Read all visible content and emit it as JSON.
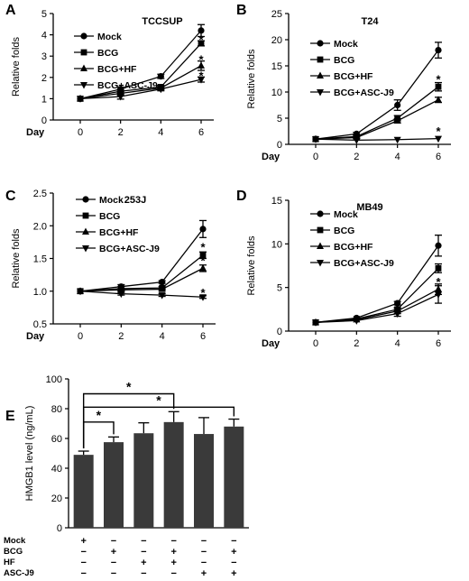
{
  "chart_data": [
    {
      "panel": "A",
      "type": "line",
      "title": "TCCSUP",
      "xlabel": "Day",
      "ylabel": "Relative folds",
      "x": [
        0,
        2,
        4,
        6
      ],
      "ylim": [
        0,
        5
      ],
      "yticks": [
        "0",
        "1",
        "2",
        "3",
        "4",
        "5"
      ],
      "xticks": [
        "0",
        "2",
        "4",
        "6"
      ],
      "series": [
        {
          "name": "Mock",
          "marker": "circle",
          "values": [
            1,
            1.45,
            2.05,
            4.2
          ],
          "errors": [
            0.03,
            0.1,
            0.1,
            0.28
          ]
        },
        {
          "name": "BCG",
          "marker": "square",
          "values": [
            1,
            1.35,
            1.55,
            3.6
          ],
          "errors": [
            0.03,
            0.08,
            0.08,
            0.12
          ]
        },
        {
          "name": "BCG+HF",
          "marker": "triangle-up",
          "values": [
            1,
            1.25,
            1.5,
            2.55
          ],
          "errors": [
            0.03,
            0.08,
            0.08,
            0.22
          ]
        },
        {
          "name": "BCG+ASC-J9",
          "marker": "triangle-down",
          "values": [
            1,
            1.1,
            1.45,
            1.9
          ],
          "errors": [
            0.03,
            0.12,
            0.08,
            0.12
          ]
        }
      ],
      "annotations": [
        {
          "text": "*",
          "x": 6,
          "y": 3.8
        },
        {
          "text": "*",
          "x": 6,
          "y": 2.85
        },
        {
          "text": "*",
          "x": 6,
          "y": 2.1
        }
      ],
      "legend": "top-left"
    },
    {
      "panel": "B",
      "type": "line",
      "title": "T24",
      "xlabel": "Day",
      "ylabel": "Relative folds",
      "x": [
        0,
        2,
        4,
        6
      ],
      "ylim": [
        0,
        25
      ],
      "yticks": [
        "0",
        "5",
        "10",
        "15",
        "20",
        "25"
      ],
      "xticks": [
        "0",
        "2",
        "4",
        "6"
      ],
      "series": [
        {
          "name": "Mock",
          "marker": "circle",
          "values": [
            1,
            2,
            7.5,
            18
          ],
          "errors": [
            0.1,
            0.3,
            1.0,
            1.5
          ]
        },
        {
          "name": "BCG",
          "marker": "square",
          "values": [
            1,
            1.5,
            5,
            11
          ],
          "errors": [
            0.1,
            0.3,
            0.5,
            0.8
          ]
        },
        {
          "name": "BCG+HF",
          "marker": "triangle-up",
          "values": [
            1,
            1.3,
            4.5,
            8.5
          ],
          "errors": [
            0.1,
            0.2,
            0.4,
            0.5
          ]
        },
        {
          "name": "BCG+ASC-J9",
          "marker": "triangle-down",
          "values": [
            1,
            0.8,
            0.9,
            1.1
          ],
          "errors": [
            0.1,
            0.1,
            0.1,
            0.1
          ]
        }
      ],
      "annotations": [
        {
          "text": "*",
          "x": 6,
          "y": 12.5
        },
        {
          "text": "*",
          "x": 6,
          "y": 2.6
        }
      ],
      "legend": "top-left"
    },
    {
      "panel": "C",
      "type": "line",
      "title": "253J",
      "xlabel": "Day",
      "ylabel": "Relative folds",
      "x": [
        0,
        2,
        4,
        6
      ],
      "ylim": [
        0.5,
        2.5
      ],
      "yticks": [
        "0.5",
        "1.0",
        "1.5",
        "2.0",
        "2.5"
      ],
      "xticks": [
        "0",
        "2",
        "4",
        "6"
      ],
      "series": [
        {
          "name": "Mock",
          "marker": "circle",
          "values": [
            1,
            1.07,
            1.14,
            1.95
          ],
          "errors": [
            0.01,
            0.03,
            0.02,
            0.13
          ]
        },
        {
          "name": "BCG",
          "marker": "square",
          "values": [
            1,
            1.04,
            1.05,
            1.55
          ],
          "errors": [
            0.01,
            0.03,
            0.02,
            0.05
          ]
        },
        {
          "name": "BCG+HF",
          "marker": "triangle-up",
          "values": [
            1,
            1.02,
            1.03,
            1.35
          ],
          "errors": [
            0.01,
            0.02,
            0.02,
            0.05
          ]
        },
        {
          "name": "BCG+ASC-J9",
          "marker": "triangle-down",
          "values": [
            1,
            0.96,
            0.94,
            0.91
          ],
          "errors": [
            0.01,
            0.02,
            0.02,
            0.02
          ]
        }
      ],
      "annotations": [
        {
          "text": "*",
          "x": 6,
          "y": 1.68
        },
        {
          "text": "*",
          "x": 6,
          "y": 1.47
        },
        {
          "text": "*",
          "x": 6,
          "y": 0.98
        }
      ],
      "legend": "top-left"
    },
    {
      "panel": "D",
      "type": "line",
      "title": "MB49",
      "xlabel": "Day",
      "ylabel": "Relative folds",
      "x": [
        0,
        2,
        4,
        6
      ],
      "ylim": [
        0,
        15
      ],
      "yticks": [
        "0",
        "5",
        "10",
        "15"
      ],
      "xticks": [
        "0",
        "2",
        "4",
        "6"
      ],
      "series": [
        {
          "name": "Mock",
          "marker": "circle",
          "values": [
            1,
            1.5,
            3.2,
            9.8
          ],
          "errors": [
            0.05,
            0.1,
            0.2,
            1.2
          ]
        },
        {
          "name": "BCG",
          "marker": "square",
          "values": [
            1,
            1.4,
            2.5,
            7.2
          ],
          "errors": [
            0.05,
            0.1,
            0.2,
            0.5
          ]
        },
        {
          "name": "BCG+HF",
          "marker": "triangle-up",
          "values": [
            1,
            1.3,
            2.3,
            4.8
          ],
          "errors": [
            0.05,
            0.1,
            0.3,
            0.6
          ]
        },
        {
          "name": "BCG+ASC-J9",
          "marker": "triangle-down",
          "values": [
            1,
            1.2,
            2.0,
            4.2
          ],
          "errors": [
            0.05,
            0.1,
            0.3,
            1.0
          ]
        }
      ],
      "annotations": [
        {
          "text": "*",
          "x": 6,
          "y": 5.7
        }
      ],
      "legend": "top-left"
    },
    {
      "panel": "E",
      "type": "bar",
      "xlabel": "",
      "ylabel": "HMGB1 level (ng/mL)",
      "ylim": [
        0,
        100
      ],
      "yticks": [
        "0",
        "20",
        "40",
        "60",
        "80",
        "100"
      ],
      "values": [
        49,
        57.5,
        63.5,
        71,
        63,
        68
      ],
      "errors": [
        2.5,
        3.5,
        7,
        7,
        11,
        5
      ],
      "color": "#3a3a3a",
      "brackets": [
        {
          "from": 0,
          "to": 1,
          "text": "*",
          "y": 71
        },
        {
          "from": 0,
          "to": 3,
          "text": "*",
          "y": 90
        },
        {
          "from": 0,
          "to": 5,
          "text": "*",
          "y": 81
        }
      ],
      "treatment_rows": [
        {
          "label": "Mock",
          "signs": [
            "+",
            "−",
            "−",
            "−",
            "−",
            "−"
          ]
        },
        {
          "label": "BCG",
          "signs": [
            "−",
            "+",
            "−",
            "+",
            "−",
            "+"
          ]
        },
        {
          "label": "HF",
          "signs": [
            "−",
            "−",
            "+",
            "+",
            "−",
            "−"
          ]
        },
        {
          "label": "ASC-J9",
          "signs": [
            "−",
            "−",
            "−",
            "−",
            "+",
            "+"
          ]
        }
      ]
    }
  ]
}
